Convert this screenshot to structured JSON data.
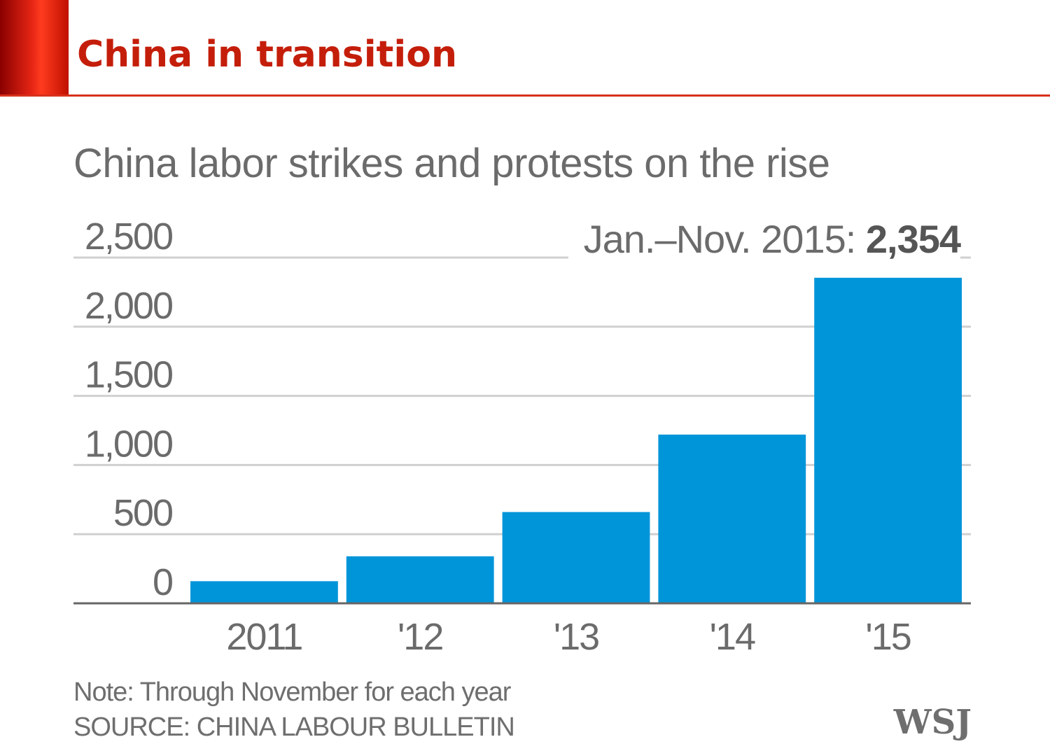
{
  "slide": {
    "title": "China in transition",
    "colors": {
      "accent": "#e32414",
      "title": "#c41e0a"
    }
  },
  "chart_data": {
    "type": "bar",
    "title": "China labor strikes and protests on the rise",
    "categories": [
      "2011",
      "'12",
      "'13",
      "'14",
      "'15"
    ],
    "values": [
      160,
      340,
      660,
      1220,
      2354
    ],
    "ylim": [
      0,
      2500
    ],
    "yticks": [
      0,
      500,
      1000,
      1500,
      2000,
      2500
    ],
    "ytick_labels": [
      "0",
      "500",
      "1,000",
      "1,500",
      "2,000",
      "2,500"
    ],
    "xlabel": "",
    "ylabel": "",
    "bar_color": "#0095d9",
    "grid": true,
    "annotation": {
      "label": "Jan.–Nov. 2015:",
      "value": "2,354"
    },
    "note": "Note: Through November for each year",
    "source": "SOURCE: CHINA LABOUR BULLETIN",
    "publisher": "WSJ"
  }
}
